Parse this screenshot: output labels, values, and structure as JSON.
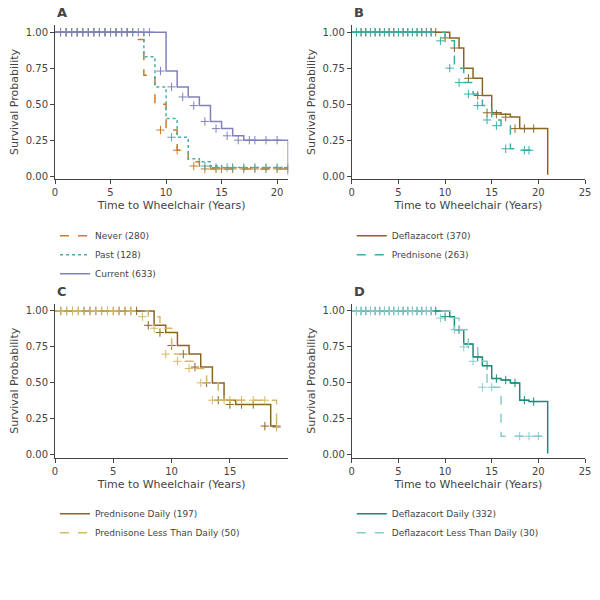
{
  "chart_data": [
    {
      "type": "step",
      "annotations": [
        "A"
      ],
      "xlabel": "Time to Wheelchair (Years)",
      "ylabel": "Survival Probability",
      "xlim": [
        0,
        21
      ],
      "ylim": [
        -0.02,
        1.05
      ],
      "xticks": [
        0,
        5,
        10,
        15,
        20
      ],
      "yticks": [
        {
          "value": 0,
          "label": "0.00"
        },
        0.25,
        {
          "value": 0.5,
          "label": "0.50"
        },
        0.75,
        {
          "value": 1,
          "label": "1.00"
        }
      ],
      "grid": false,
      "legend": "lower left",
      "marker": "plus",
      "series": [
        {
          "name": "Never (280)",
          "color": "#C87B2A",
          "line_style": "dashed",
          "x": [
            0,
            7.0,
            7.5,
            8.0,
            9.0,
            10.0,
            11.0,
            12.0,
            13.0,
            14.0,
            21.0
          ],
          "values": [
            1.0,
            1.0,
            0.95,
            0.7,
            0.5,
            0.32,
            0.18,
            0.1,
            0.07,
            0.05,
            0.05
          ],
          "censor": {
            "x": [
              0.5,
              1,
              1.5,
              2,
              2.5,
              3,
              3.5,
              4,
              4.5,
              5,
              5.5,
              6,
              6.5,
              9.5,
              11,
              12.5,
              13.5,
              14.5,
              15,
              16,
              17,
              18,
              19,
              20,
              21
            ],
            "values": [
              1.0,
              1.0,
              1.0,
              1.0,
              1.0,
              1.0,
              1.0,
              1.0,
              1.0,
              1.0,
              1.0,
              1.0,
              1.0,
              0.32,
              0.18,
              0.07,
              0.05,
              0.05,
              0.05,
              0.05,
              0.05,
              0.05,
              0.05,
              0.05,
              0.05
            ]
          }
        },
        {
          "name": "Past (128)",
          "color": "#4AADA8",
          "line_style": "dotted",
          "x": [
            0,
            7.5,
            8.0,
            9.0,
            10.0,
            11.0,
            12.0,
            13.0,
            14.0,
            15.0,
            21.0
          ],
          "values": [
            1.0,
            1.0,
            0.83,
            0.62,
            0.4,
            0.27,
            0.12,
            0.1,
            0.07,
            0.06,
            0.06
          ],
          "censor": {
            "x": [
              0.5,
              1,
              1.5,
              2,
              2.5,
              3,
              3.5,
              4,
              4.5,
              5,
              5.5,
              6,
              6.5,
              7,
              10.5,
              13.5,
              14.5,
              15.5,
              16,
              17,
              18,
              19,
              20,
              21
            ],
            "values": [
              1.0,
              1.0,
              1.0,
              1.0,
              1.0,
              1.0,
              1.0,
              1.0,
              1.0,
              1.0,
              1.0,
              1.0,
              1.0,
              1.0,
              0.27,
              0.07,
              0.06,
              0.06,
              0.06,
              0.06,
              0.06,
              0.06,
              0.06,
              0.06
            ]
          }
        },
        {
          "name": "Current (633)",
          "color": "#8080BB",
          "line_style": "solid",
          "x": [
            0,
            9.0,
            10.0,
            11.0,
            12.0,
            13.0,
            14.0,
            15.0,
            16.0,
            17.0,
            18.5,
            20.0,
            21.0
          ],
          "values": [
            1.0,
            1.0,
            0.73,
            0.62,
            0.55,
            0.49,
            0.38,
            0.33,
            0.28,
            0.25,
            0.25,
            0.25,
            0.01
          ],
          "censor": {
            "x": [
              0.5,
              1,
              1.5,
              2,
              2.5,
              3,
              3.5,
              4,
              4.5,
              5,
              5.5,
              6,
              6.5,
              7,
              7.5,
              8,
              8.5,
              9.5,
              10.5,
              11.5,
              12.5,
              13.5,
              14.5,
              15.5,
              16.5,
              17.5,
              18,
              19,
              20
            ],
            "values": [
              1.0,
              1.0,
              1.0,
              1.0,
              1.0,
              1.0,
              1.0,
              1.0,
              1.0,
              1.0,
              1.0,
              1.0,
              1.0,
              1.0,
              1.0,
              1.0,
              1.0,
              0.73,
              0.62,
              0.55,
              0.49,
              0.38,
              0.33,
              0.28,
              0.25,
              0.25,
              0.25,
              0.25,
              0.25
            ]
          }
        }
      ]
    },
    {
      "type": "step",
      "annotations": [
        "B"
      ],
      "xlabel": "Time to Wheelchair (Years)",
      "ylabel": "Survival Probability",
      "xlim": [
        0,
        25
      ],
      "ylim": [
        -0.02,
        1.05
      ],
      "xticks": [
        0,
        5,
        10,
        15,
        20,
        25
      ],
      "yticks": [
        {
          "value": 0,
          "label": "0.00"
        },
        0.25,
        {
          "value": 0.5,
          "label": "0.50"
        },
        0.75,
        {
          "value": 1,
          "label": "1.00"
        }
      ],
      "grid": false,
      "legend": "lower left",
      "marker": "plus",
      "series": [
        {
          "name": "Deflazacort (370)",
          "color": "#8B6520",
          "line_style": "solid",
          "x": [
            0,
            9.5,
            10.5,
            11.5,
            12.0,
            13.0,
            14.0,
            15.0,
            16.0,
            17.0,
            18.0,
            19.0,
            20.0,
            21.0
          ],
          "values": [
            1.0,
            1.0,
            0.96,
            0.89,
            0.75,
            0.68,
            0.56,
            0.44,
            0.43,
            0.41,
            0.33,
            0.33,
            0.33,
            0.01
          ],
          "censor": {
            "x": [
              0.5,
              1,
              1.5,
              2,
              2.5,
              3,
              3.5,
              4,
              4.5,
              5,
              5.5,
              6,
              6.5,
              7,
              7.5,
              8,
              8.5,
              9,
              10,
              11,
              12.5,
              13.5,
              14.5,
              15.5,
              16.5,
              17.5,
              18.5,
              19.5
            ],
            "values": [
              1.0,
              1.0,
              1.0,
              1.0,
              1.0,
              1.0,
              1.0,
              1.0,
              1.0,
              1.0,
              1.0,
              1.0,
              1.0,
              1.0,
              1.0,
              1.0,
              1.0,
              1.0,
              0.96,
              0.89,
              0.68,
              0.56,
              0.44,
              0.43,
              0.41,
              0.33,
              0.33,
              0.33
            ]
          }
        },
        {
          "name": "Prednisone (263)",
          "color": "#3AADA8",
          "line_style": "dashed",
          "x": [
            0,
            9.0,
            10.0,
            11.0,
            12.0,
            13.0,
            14.0,
            15.0,
            16.0,
            17.0,
            18.0,
            19.5,
            20.0
          ],
          "values": [
            1.0,
            1.0,
            0.94,
            0.75,
            0.65,
            0.57,
            0.49,
            0.39,
            0.35,
            0.19,
            0.18,
            0.18,
            0.18
          ],
          "censor": {
            "x": [
              0.5,
              1,
              1.5,
              2,
              2.5,
              3,
              3.5,
              4,
              4.5,
              5,
              5.5,
              6,
              6.5,
              7,
              7.5,
              8,
              8.5,
              9.5,
              10.5,
              11.5,
              12.5,
              13.5,
              14.5,
              15.5,
              16.5,
              18.5,
              19
            ],
            "values": [
              1.0,
              1.0,
              1.0,
              1.0,
              1.0,
              1.0,
              1.0,
              1.0,
              1.0,
              1.0,
              1.0,
              1.0,
              1.0,
              1.0,
              1.0,
              1.0,
              1.0,
              0.94,
              0.75,
              0.65,
              0.57,
              0.49,
              0.39,
              0.35,
              0.19,
              0.18,
              0.18
            ]
          }
        }
      ]
    },
    {
      "type": "step",
      "annotations": [
        "C"
      ],
      "xlabel": "Time to Wheelchair (Years)",
      "ylabel": "Survival Probability",
      "xlim": [
        0,
        20
      ],
      "ylim": [
        -0.02,
        1.05
      ],
      "xticks": [
        0,
        5,
        10,
        15
      ],
      "yticks": [
        {
          "value": 0,
          "label": "0.00"
        },
        0.25,
        {
          "value": 0.5,
          "label": "0.50"
        },
        0.75,
        {
          "value": 1,
          "label": "1.00"
        }
      ],
      "grid": false,
      "legend": "lower left",
      "marker": "plus",
      "series": [
        {
          "name": "Prednisone Daily (197)",
          "color": "#8B6520",
          "line_style": "solid",
          "x": [
            0,
            7.5,
            8.5,
            9.5,
            10.5,
            11.5,
            12.5,
            13.5,
            14.5,
            15.5,
            17.5,
            18.5,
            19.0
          ],
          "values": [
            1.0,
            1.0,
            0.9,
            0.85,
            0.76,
            0.7,
            0.61,
            0.5,
            0.38,
            0.35,
            0.35,
            0.2,
            0.2
          ],
          "censor": {
            "x": [
              0.5,
              1,
              1.5,
              2,
              2.5,
              3,
              3.5,
              4,
              4.5,
              5,
              5.5,
              6,
              6.5,
              7,
              8,
              9,
              10,
              11,
              12,
              13,
              14,
              15,
              16,
              17,
              18,
              19
            ],
            "values": [
              1.0,
              1.0,
              1.0,
              1.0,
              1.0,
              1.0,
              1.0,
              1.0,
              1.0,
              1.0,
              1.0,
              1.0,
              1.0,
              1.0,
              0.9,
              0.85,
              0.76,
              0.7,
              0.61,
              0.5,
              0.38,
              0.35,
              0.35,
              0.35,
              0.2,
              0.2
            ]
          }
        },
        {
          "name": "Prednisone Less Than Daily (50)",
          "color": "#D4B86A",
          "line_style": "dashed",
          "x": [
            0,
            7.0,
            8.0,
            9.0,
            10.0,
            11.0,
            12.0,
            13.0,
            14.0,
            15.0,
            18.5,
            19.0
          ],
          "values": [
            1.0,
            1.0,
            0.96,
            0.88,
            0.7,
            0.65,
            0.6,
            0.5,
            0.38,
            0.38,
            0.38,
            0.19
          ],
          "censor": {
            "x": [
              0.5,
              1,
              1.5,
              2,
              2.5,
              3,
              3.5,
              4,
              4.5,
              5,
              5.5,
              6,
              6.5,
              7.5,
              8.5,
              9.5,
              10.5,
              11.5,
              12.5,
              13.5,
              14.5,
              15,
              16,
              17,
              18,
              19
            ],
            "values": [
              1.0,
              1.0,
              1.0,
              1.0,
              1.0,
              1.0,
              1.0,
              1.0,
              1.0,
              1.0,
              1.0,
              1.0,
              1.0,
              0.96,
              0.88,
              0.7,
              0.65,
              0.6,
              0.5,
              0.38,
              0.38,
              0.38,
              0.38,
              0.38,
              0.38,
              0.19
            ]
          }
        }
      ]
    },
    {
      "type": "step",
      "annotations": [
        "D"
      ],
      "xlabel": "Time to Wheelchair (Years)",
      "ylabel": "Survival Probability",
      "xlim": [
        0,
        25
      ],
      "ylim": [
        -0.02,
        1.05
      ],
      "xticks": [
        0,
        5,
        10,
        15,
        20,
        25
      ],
      "yticks": [
        {
          "value": 0,
          "label": "0.00"
        },
        0.25,
        {
          "value": 0.5,
          "label": "0.50"
        },
        0.75,
        {
          "value": 1,
          "label": "1.00"
        }
      ],
      "grid": false,
      "legend": "lower left",
      "marker": "plus",
      "series": [
        {
          "name": "Deflazacort Daily (332)",
          "color": "#1A8A7A",
          "line_style": "solid",
          "x": [
            0,
            9.5,
            10.5,
            11.0,
            12.0,
            13.0,
            14.0,
            15.0,
            16.0,
            17.0,
            18.0,
            19.0,
            20.0,
            21.0
          ],
          "values": [
            1.0,
            1.0,
            0.96,
            0.87,
            0.77,
            0.68,
            0.62,
            0.53,
            0.52,
            0.5,
            0.38,
            0.37,
            0.37,
            0.01
          ],
          "censor": {
            "x": [
              0.5,
              1,
              1.5,
              2,
              2.5,
              3,
              3.5,
              4,
              4.5,
              5,
              5.5,
              6,
              6.5,
              7,
              7.5,
              8,
              8.5,
              9,
              10,
              11.5,
              12.5,
              13.5,
              14.5,
              15.5,
              16.5,
              17.5,
              18.5,
              19.5
            ],
            "values": [
              1.0,
              1.0,
              1.0,
              1.0,
              1.0,
              1.0,
              1.0,
              1.0,
              1.0,
              1.0,
              1.0,
              1.0,
              1.0,
              1.0,
              1.0,
              1.0,
              1.0,
              1.0,
              0.96,
              0.87,
              0.77,
              0.68,
              0.62,
              0.53,
              0.52,
              0.5,
              0.38,
              0.37
            ]
          }
        },
        {
          "name": "Deflazacort Less Than Daily (30)",
          "color": "#88CCCC",
          "line_style": "dashed",
          "x": [
            0,
            9.0,
            10.5,
            11.5,
            12.5,
            13.5,
            14.5,
            15.5,
            16.0,
            17.0,
            18.0,
            20.0,
            21.0
          ],
          "values": [
            1.0,
            1.0,
            0.95,
            0.87,
            0.75,
            0.65,
            0.47,
            0.47,
            0.13,
            0.13,
            0.13,
            0.13,
            0.13
          ],
          "censor": {
            "x": [
              0.5,
              1,
              1.5,
              2,
              2.5,
              3,
              3.5,
              4,
              4.5,
              5,
              5.5,
              6,
              6.5,
              7,
              7.5,
              8,
              8.5,
              9.5,
              11,
              12,
              13,
              14,
              15,
              18,
              19,
              20
            ],
            "values": [
              1.0,
              1.0,
              1.0,
              1.0,
              1.0,
              1.0,
              1.0,
              1.0,
              1.0,
              1.0,
              1.0,
              1.0,
              1.0,
              1.0,
              1.0,
              1.0,
              1.0,
              0.95,
              0.87,
              0.75,
              0.65,
              0.47,
              0.47,
              0.13,
              0.13,
              0.13
            ]
          }
        }
      ]
    }
  ]
}
